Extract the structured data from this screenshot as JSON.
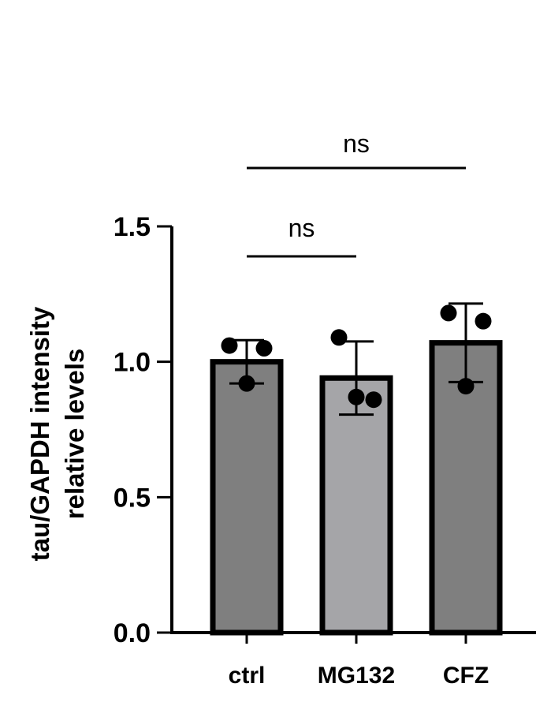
{
  "chart_data": {
    "type": "bar",
    "ylabel_lines": [
      "tau/GAPDH intensity",
      "relative levels"
    ],
    "ylim": [
      0,
      1.5
    ],
    "yticks": [
      "0.0",
      "0.5",
      "1.0",
      "1.5"
    ],
    "categories": [
      "ctrl",
      "MG132",
      "CFZ"
    ],
    "values": [
      1.0,
      0.94,
      1.07
    ],
    "errors": [
      0.08,
      0.135,
      0.145
    ],
    "points": [
      [
        1.06,
        1.05,
        0.92
      ],
      [
        1.09,
        0.86,
        0.87
      ],
      [
        1.18,
        1.15,
        0.91
      ]
    ],
    "colors": [
      "#7f7f7f",
      "#a5a5a8",
      "#7f7f7f"
    ],
    "grid": false,
    "significance": [
      {
        "from": "ctrl",
        "to": "MG132",
        "label": "ns"
      },
      {
        "from": "ctrl",
        "to": "CFZ",
        "label": "ns"
      }
    ]
  }
}
